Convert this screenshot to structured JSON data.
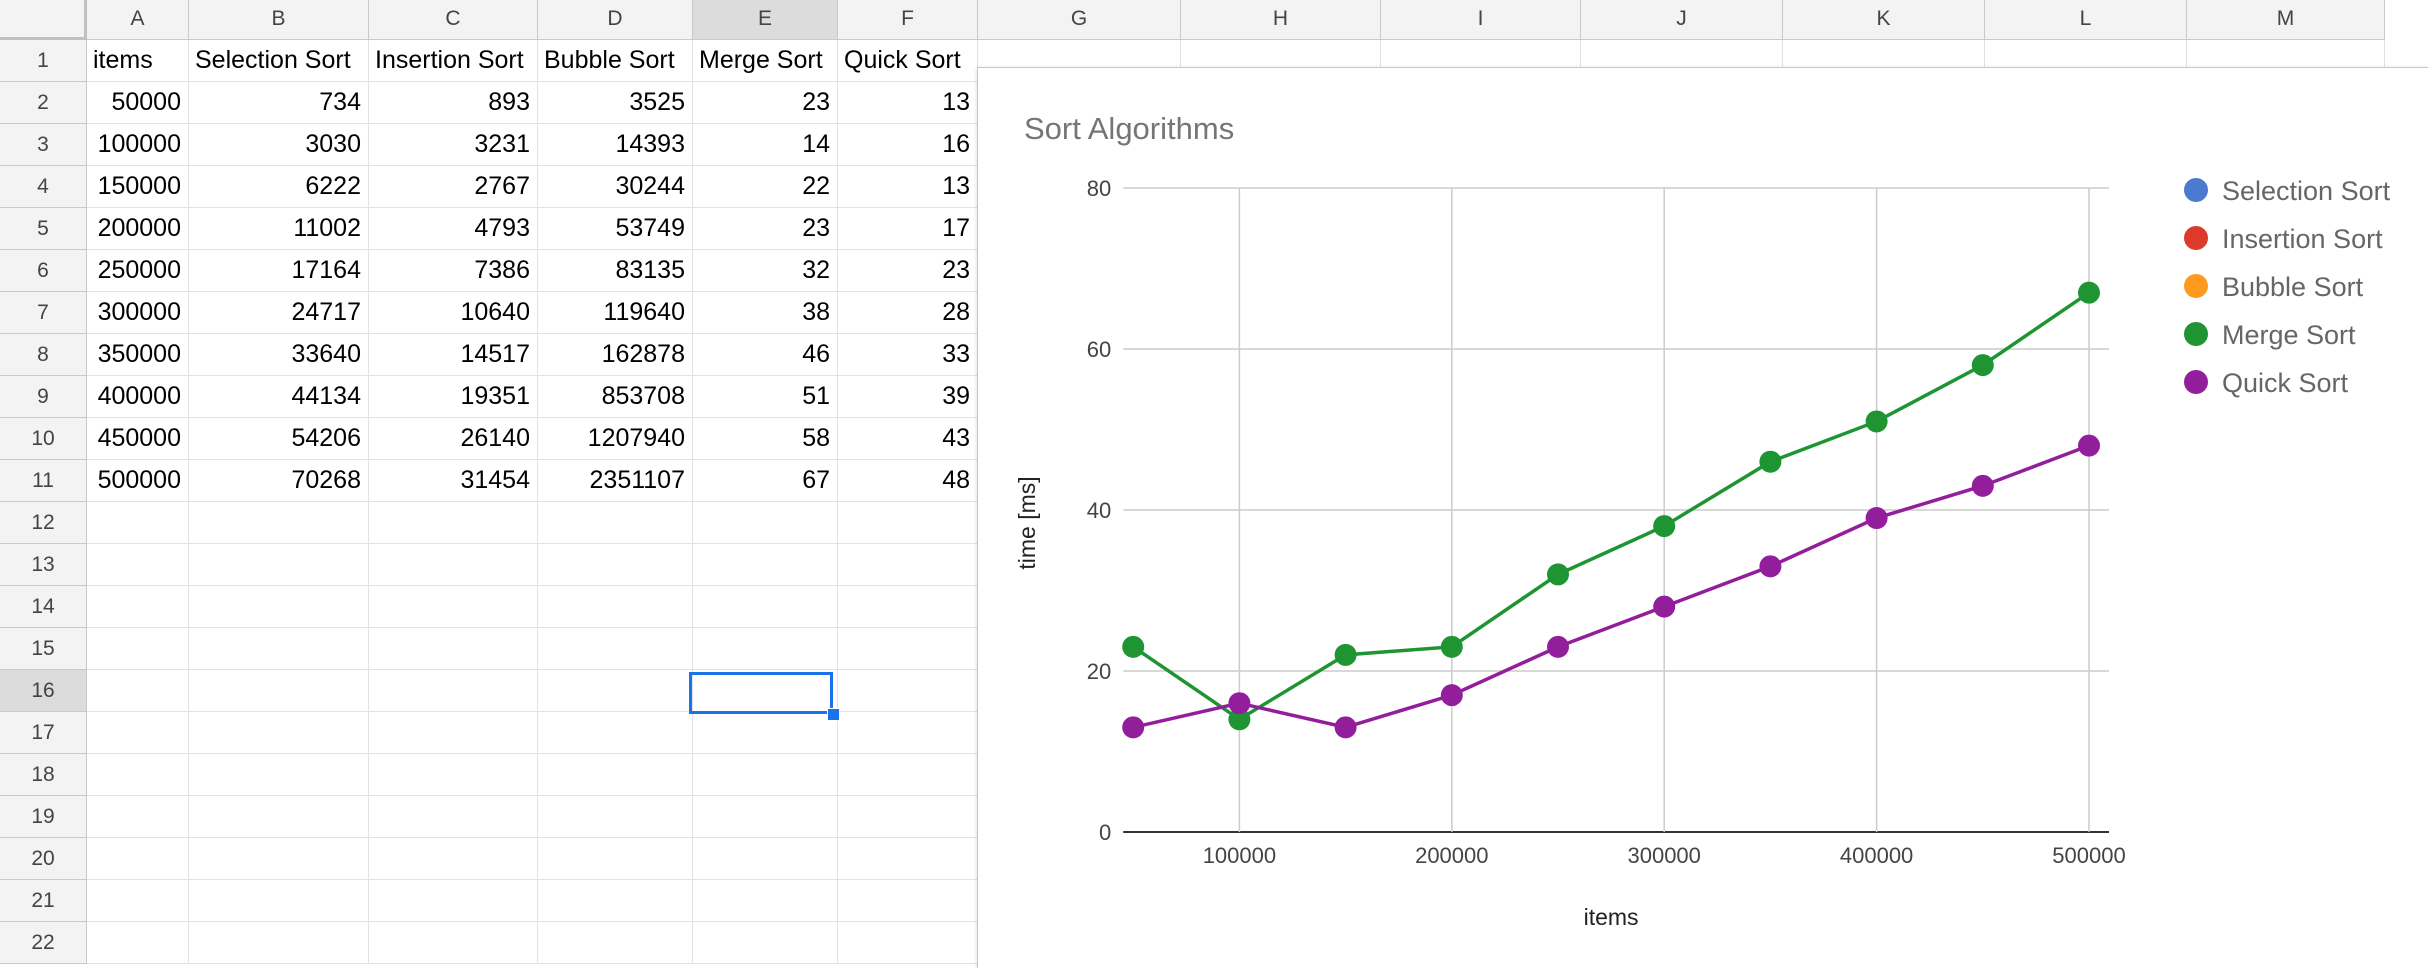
{
  "sheet": {
    "columns": [
      "A",
      "B",
      "C",
      "D",
      "E",
      "F",
      "G",
      "H",
      "I",
      "J",
      "K",
      "L",
      "M"
    ],
    "row_count": 22,
    "selected_cell": "E16",
    "header_row": [
      "items",
      "Selection Sort",
      "Insertion Sort",
      "Bubble Sort",
      "Merge Sort",
      "Quick Sort"
    ],
    "rows": [
      [
        "50000",
        "734",
        "893",
        "3525",
        "23",
        "13"
      ],
      [
        "100000",
        "3030",
        "3231",
        "14393",
        "14",
        "16"
      ],
      [
        "150000",
        "6222",
        "2767",
        "30244",
        "22",
        "13"
      ],
      [
        "200000",
        "11002",
        "4793",
        "53749",
        "23",
        "17"
      ],
      [
        "250000",
        "17164",
        "7386",
        "83135",
        "32",
        "23"
      ],
      [
        "300000",
        "24717",
        "10640",
        "119640",
        "38",
        "28"
      ],
      [
        "350000",
        "33640",
        "14517",
        "162878",
        "46",
        "33"
      ],
      [
        "400000",
        "44134",
        "19351",
        "853708",
        "51",
        "39"
      ],
      [
        "450000",
        "54206",
        "26140",
        "1207940",
        "58",
        "43"
      ],
      [
        "500000",
        "70268",
        "31454",
        "2351107",
        "67",
        "48"
      ]
    ]
  },
  "chart_data": {
    "type": "line",
    "title": "Sort Algorithms",
    "xlabel": "items",
    "ylabel": "time [ms]",
    "ylim": [
      0,
      80
    ],
    "yticks": [
      "0",
      "20",
      "40",
      "60",
      "80"
    ],
    "xlim": [
      50000,
      500000
    ],
    "xticks": [
      "100000",
      "200000",
      "300000",
      "400000",
      "500000"
    ],
    "grid": true,
    "legend_position": "right",
    "x": [
      50000,
      100000,
      150000,
      200000,
      250000,
      300000,
      350000,
      400000,
      450000,
      500000
    ],
    "series": [
      {
        "name": "Selection Sort",
        "color": "#4a7bd0",
        "values": [
          734,
          3030,
          6222,
          11002,
          17164,
          24717,
          33640,
          44134,
          54206,
          70268
        ]
      },
      {
        "name": "Insertion Sort",
        "color": "#dc3b2b",
        "values": [
          893,
          3231,
          2767,
          4793,
          7386,
          10640,
          14517,
          19351,
          26140,
          31454
        ]
      },
      {
        "name": "Bubble Sort",
        "color": "#ff9a1f",
        "values": [
          3525,
          14393,
          30244,
          53749,
          83135,
          119640,
          162878,
          853708,
          1207940,
          2351107
        ]
      },
      {
        "name": "Merge Sort",
        "color": "#1f9433",
        "values": [
          23,
          14,
          22,
          23,
          32,
          38,
          46,
          51,
          58,
          67
        ]
      },
      {
        "name": "Quick Sort",
        "color": "#931e9b",
        "values": [
          13,
          16,
          13,
          17,
          23,
          28,
          33,
          39,
          43,
          48
        ]
      }
    ]
  }
}
